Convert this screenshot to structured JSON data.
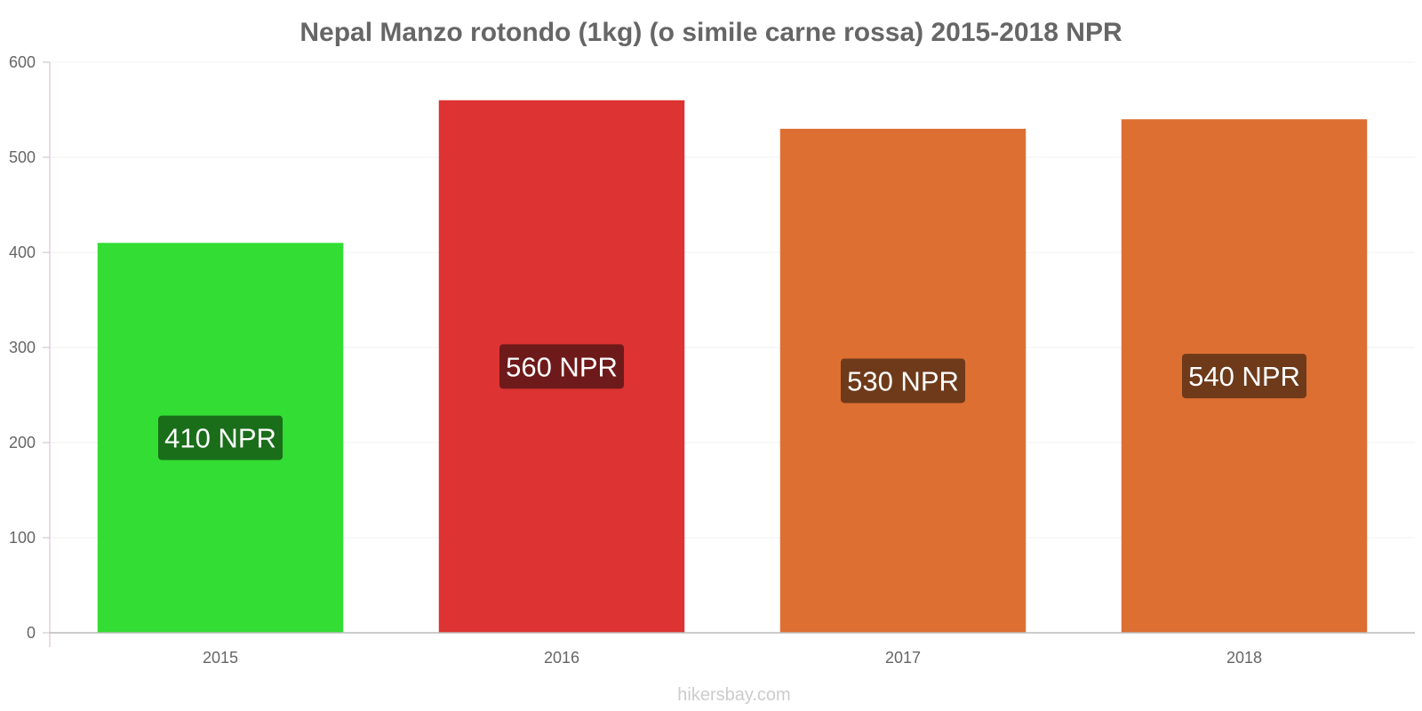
{
  "chart_data": {
    "type": "bar",
    "title": "Nepal Manzo rotondo (1kg) (o simile carne rossa) 2015-2018 NPR",
    "categories": [
      "2015",
      "2016",
      "2017",
      "2018"
    ],
    "values": [
      410,
      560,
      530,
      540
    ],
    "data_labels": [
      "410 NPR",
      "560 NPR",
      "530 NPR",
      "540 NPR"
    ],
    "bar_colors": [
      "#33dd33",
      "#dd3333",
      "#dd6f33",
      "#dd6f33"
    ],
    "label_box_colors": [
      "#1a6e1a",
      "#6e1a1a",
      "#6e3a1a",
      "#6e3a1a"
    ],
    "ylim": [
      0,
      600
    ],
    "yticks": [
      0,
      100,
      200,
      300,
      400,
      500,
      600
    ],
    "xlabel": "",
    "ylabel": "",
    "grid": true,
    "legend": "none"
  },
  "credit": "hikersbay.com"
}
